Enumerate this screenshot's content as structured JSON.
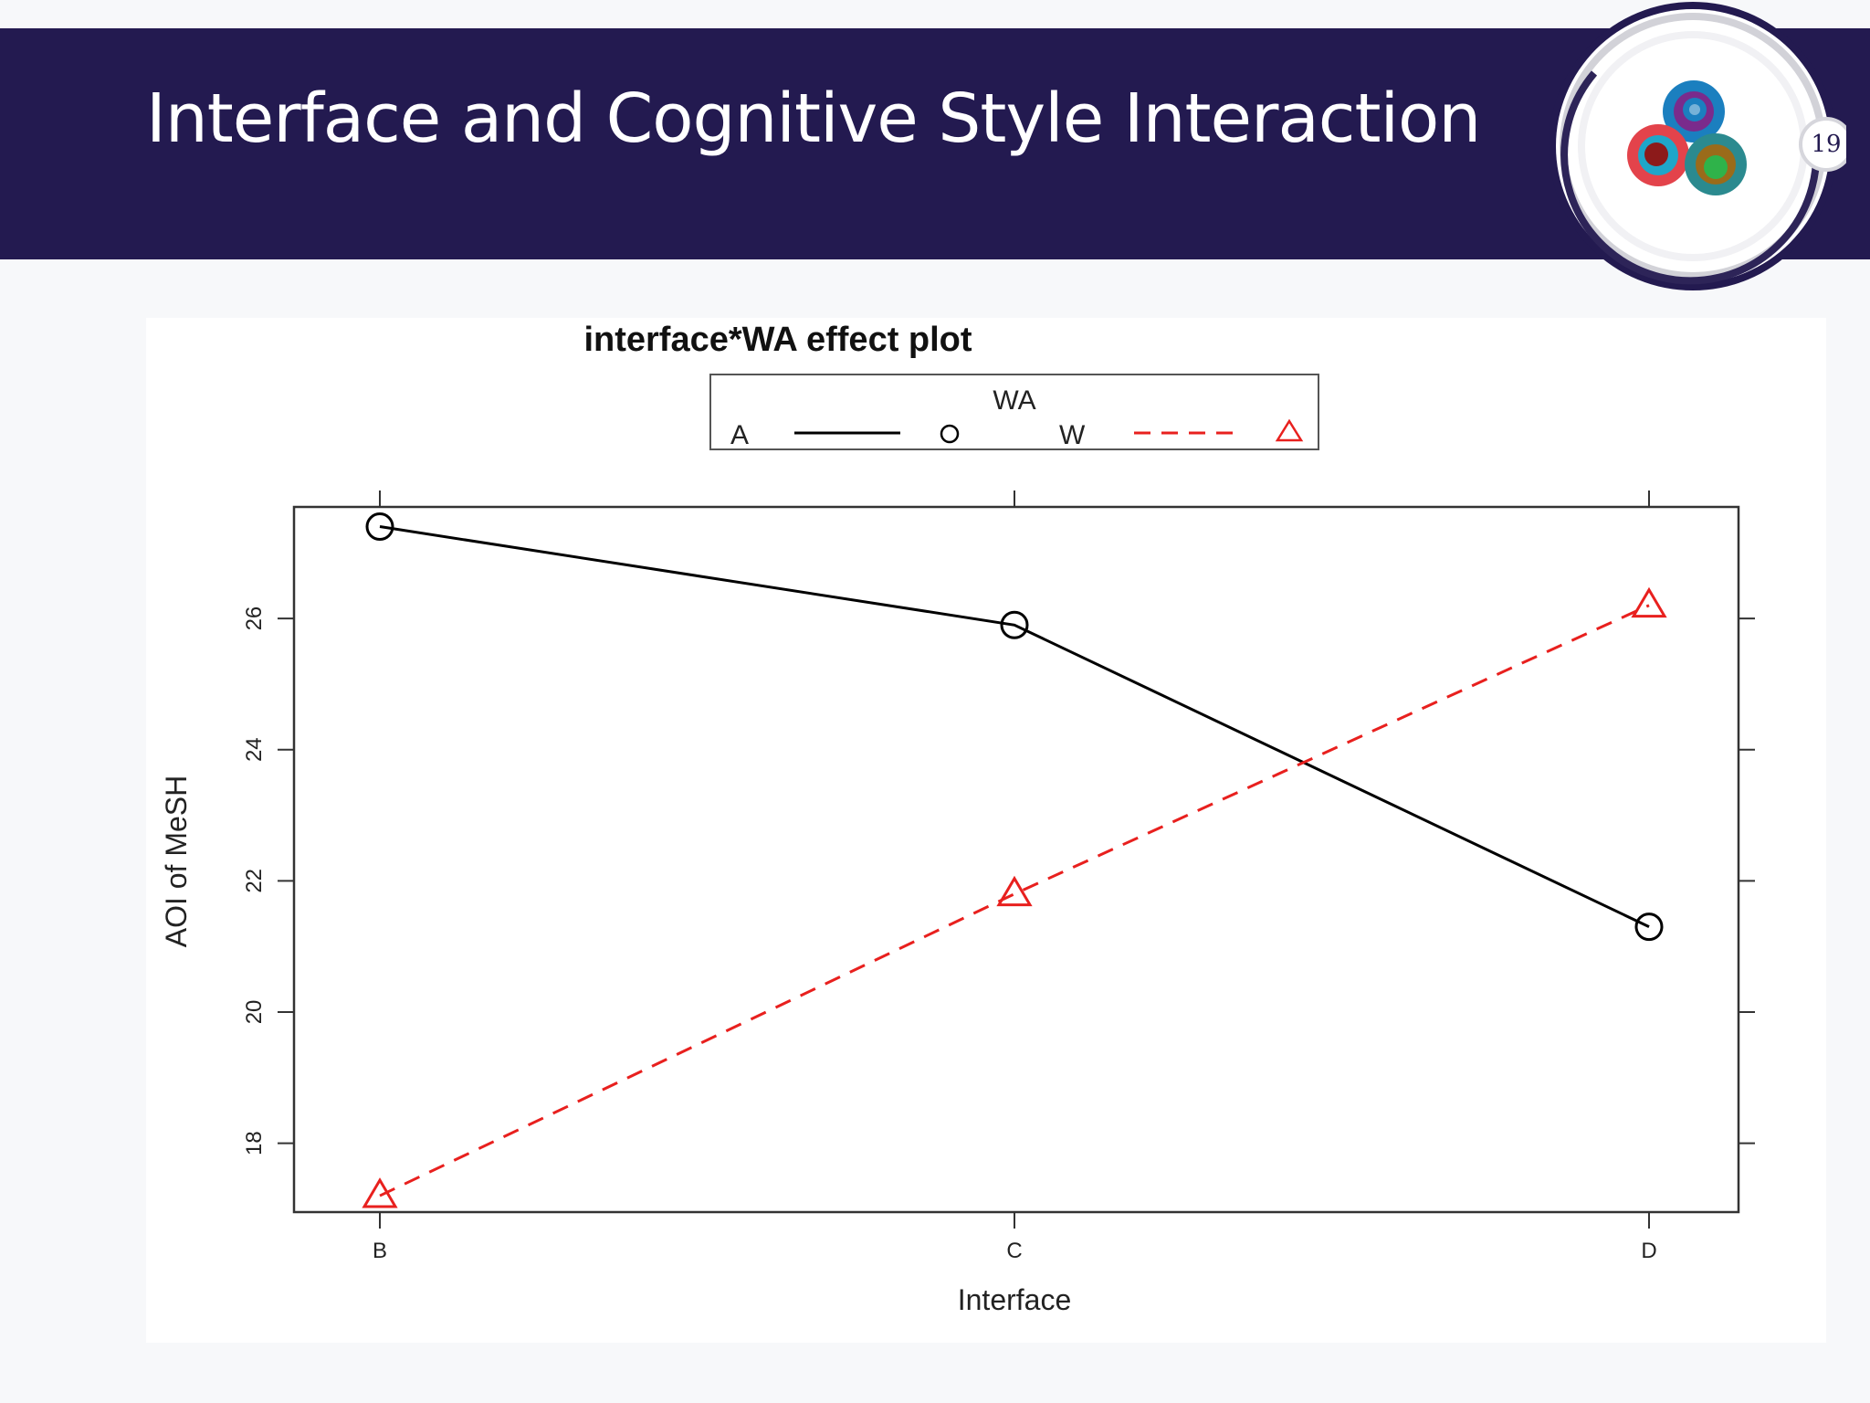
{
  "slide": {
    "title": "Interface and Cognitive Style Interaction",
    "page_number": "19"
  },
  "colors": {
    "header": "#231a50",
    "background": "#f7f8fa",
    "series_a": "#000000",
    "series_w": "#e8201e"
  },
  "chart_data": {
    "type": "line",
    "title": "interface*WA effect plot",
    "xlabel": "Interface",
    "ylabel": "AOI of MeSH",
    "categories": [
      "B",
      "C",
      "D"
    ],
    "y_ticks": [
      18,
      20,
      22,
      24,
      26
    ],
    "ylim": [
      16.95,
      27.7
    ],
    "grid": false,
    "legend": {
      "title": "WA",
      "placement": "top-center",
      "entries": [
        "A",
        "W"
      ]
    },
    "series": [
      {
        "name": "A",
        "values": [
          27.4,
          25.9,
          21.3
        ],
        "color": "#000000",
        "line": "solid",
        "marker": "circle"
      },
      {
        "name": "W",
        "values": [
          17.2,
          21.8,
          26.2
        ],
        "color": "#e8201e",
        "line": "dashed",
        "marker": "triangle"
      }
    ]
  }
}
